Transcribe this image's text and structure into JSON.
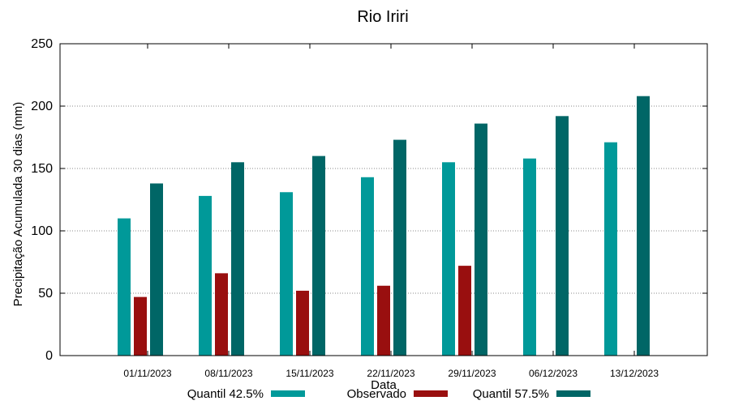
{
  "chart_data": {
    "type": "bar",
    "title": "Rio Iriri",
    "xlabel": "Data",
    "ylabel": "Precipitação Acumulada 30 dias (mm)",
    "ylim": [
      0,
      250
    ],
    "yticks": [
      0,
      50,
      100,
      150,
      200,
      250
    ],
    "grid": true,
    "legend_position": "bottom",
    "categories": [
      "01/11/2023",
      "08/11/2023",
      "15/11/2023",
      "22/11/2023",
      "29/11/2023",
      "06/12/2023",
      "13/12/2023"
    ],
    "series": [
      {
        "name": "Quantil 42.5%",
        "color": "#009999",
        "values": [
          110,
          128,
          131,
          143,
          155,
          158,
          171
        ]
      },
      {
        "name": "Observado",
        "color": "#990f0f",
        "values": [
          47,
          66,
          52,
          56,
          72,
          null,
          null
        ]
      },
      {
        "name": "Quantil 57.5%",
        "color": "#006666",
        "values": [
          138,
          155,
          160,
          173,
          186,
          192,
          208
        ]
      }
    ]
  }
}
